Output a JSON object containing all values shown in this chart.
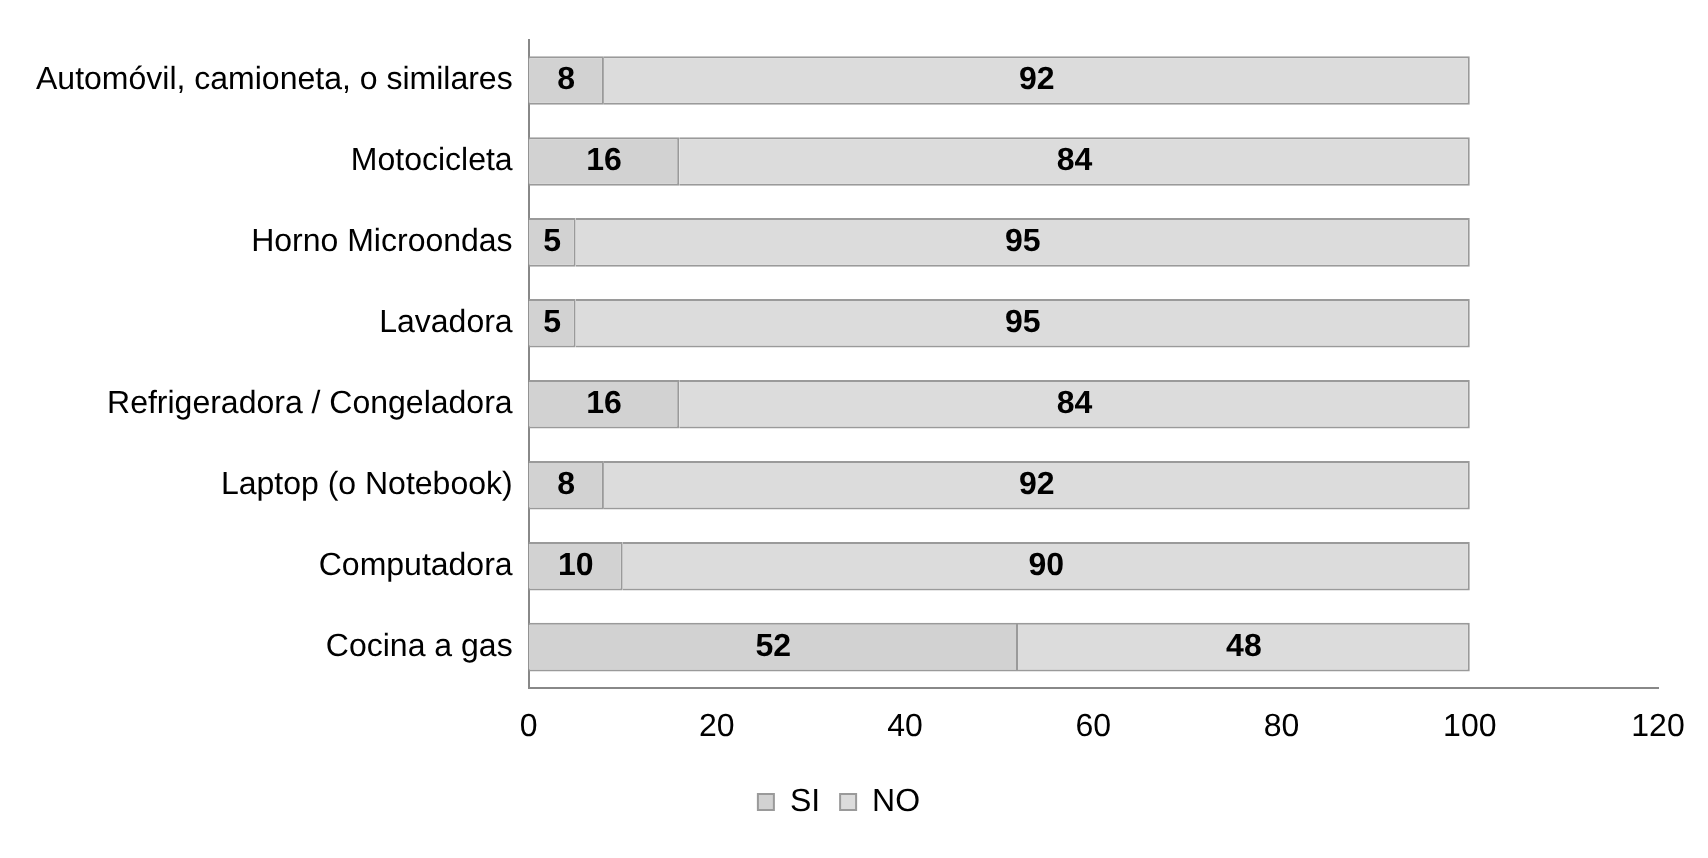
{
  "chart_data": {
    "type": "bar",
    "orientation": "horizontal",
    "stacked": true,
    "categories": [
      "Automóvil, camioneta, o similares",
      "Motocicleta",
      "Horno Microondas",
      "Lavadora",
      "Refrigeradora / Congeladora",
      "Laptop (o Notebook)",
      "Computadora",
      "Cocina a gas"
    ],
    "series": [
      {
        "name": "SI",
        "color": "#d2d2d2",
        "values": [
          8,
          16,
          5,
          5,
          16,
          8,
          10,
          52
        ]
      },
      {
        "name": "NO",
        "color": "#dcdcdc",
        "values": [
          92,
          84,
          95,
          95,
          84,
          92,
          90,
          48
        ]
      }
    ],
    "xlim": [
      0,
      120
    ],
    "xticks": [
      0,
      20,
      40,
      60,
      80,
      100,
      120
    ],
    "grid": false,
    "legend": "bottom",
    "data_labels": true
  }
}
